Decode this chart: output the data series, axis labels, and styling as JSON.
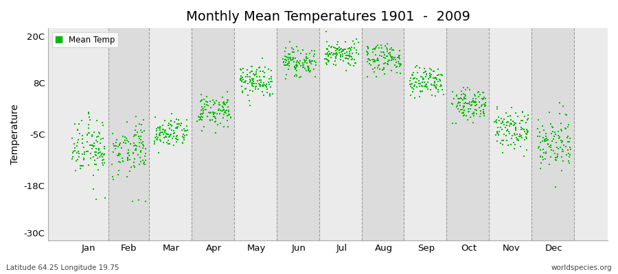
{
  "title": "Monthly Mean Temperatures 1901  -  2009",
  "ylabel": "Temperature",
  "yticks": [
    -30,
    -18,
    -5,
    8,
    20
  ],
  "ytick_labels": [
    "-30C",
    "-18C",
    "-5C",
    "8C",
    "20C"
  ],
  "ylim": [
    -32,
    22
  ],
  "xlim": [
    0.0,
    12.5
  ],
  "months": [
    "Jan",
    "Feb",
    "Mar",
    "Apr",
    "May",
    "Jun",
    "Jul",
    "Aug",
    "Sep",
    "Oct",
    "Nov",
    "Dec"
  ],
  "month_positions": [
    0.9,
    1.8,
    2.75,
    3.7,
    4.65,
    5.6,
    6.55,
    7.5,
    8.45,
    9.4,
    10.35,
    11.3
  ],
  "vline_positions": [
    1.35,
    2.25,
    3.2,
    4.15,
    5.1,
    6.05,
    7.0,
    7.95,
    8.9,
    9.85,
    10.8,
    11.75
  ],
  "mean_temps": [
    -8.5,
    -8.5,
    -4.5,
    1.0,
    8.5,
    13.5,
    15.5,
    14.0,
    8.5,
    2.5,
    -3.5,
    -7.0
  ],
  "std_temps": [
    3.5,
    3.5,
    2.0,
    2.0,
    2.0,
    1.8,
    1.8,
    1.8,
    1.8,
    2.0,
    2.5,
    3.0
  ],
  "dot_color": "#00bb00",
  "dot_size": 4,
  "background_color_dark": "#dcdcdc",
  "background_color_light": "#ebebeb",
  "n_years": 109,
  "subtitle_left": "Latitude 64.25 Longitude 19.75",
  "subtitle_right": "worldspecies.org",
  "legend_label": "Mean Temp",
  "figsize": [
    9.0,
    4.0
  ],
  "dpi": 100
}
